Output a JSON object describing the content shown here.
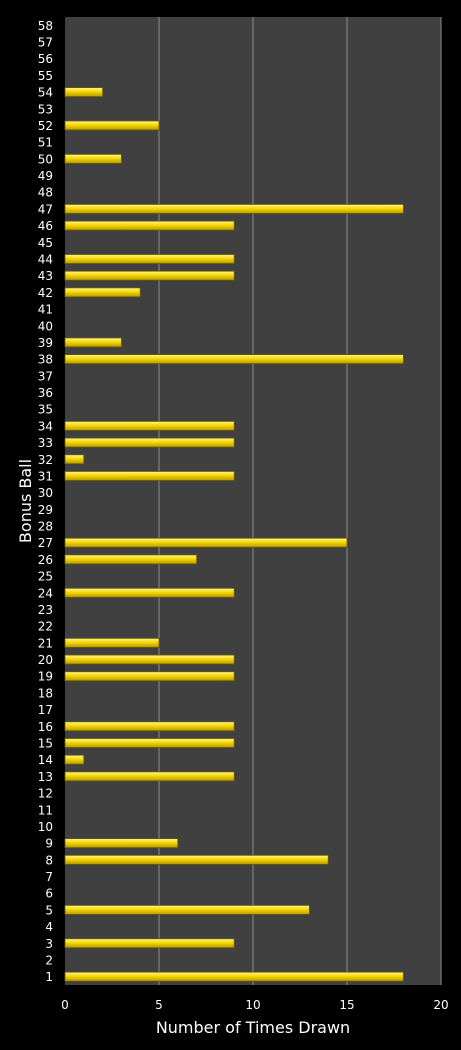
{
  "chart_data": {
    "type": "bar",
    "orientation": "horizontal",
    "xlabel": "Number of Times Drawn",
    "ylabel": "Bonus Ball",
    "xlim": [
      0,
      20
    ],
    "xticks": [
      0,
      5,
      10,
      15,
      20
    ],
    "grid": true,
    "colors": {
      "background": "#000000",
      "plot_area": "#404040",
      "gridline": "#8c8c8c",
      "bar_fill": "#f5d800",
      "bar_highlight": "#fff59a",
      "bar_edge": "#6b5a00",
      "text": "#ffffff"
    },
    "categories": [
      1,
      2,
      3,
      4,
      5,
      6,
      7,
      8,
      9,
      10,
      11,
      12,
      13,
      14,
      15,
      16,
      17,
      18,
      19,
      20,
      21,
      22,
      23,
      24,
      25,
      26,
      27,
      28,
      29,
      30,
      31,
      32,
      33,
      34,
      35,
      36,
      37,
      38,
      39,
      40,
      41,
      42,
      43,
      44,
      45,
      46,
      47,
      48,
      49,
      50,
      51,
      52,
      53,
      54,
      55,
      56,
      57,
      58
    ],
    "values": [
      18,
      0,
      9,
      0,
      13,
      0,
      0,
      14,
      6,
      0,
      0,
      0,
      9,
      1,
      9,
      9,
      0,
      0,
      9,
      9,
      5,
      0,
      0,
      9,
      0,
      7,
      15,
      0,
      0,
      0,
      9,
      1,
      9,
      9,
      0,
      0,
      0,
      18,
      3,
      0,
      0,
      4,
      9,
      9,
      0,
      9,
      18,
      0,
      0,
      3,
      0,
      5,
      0,
      2,
      0,
      0,
      0,
      0
    ]
  }
}
